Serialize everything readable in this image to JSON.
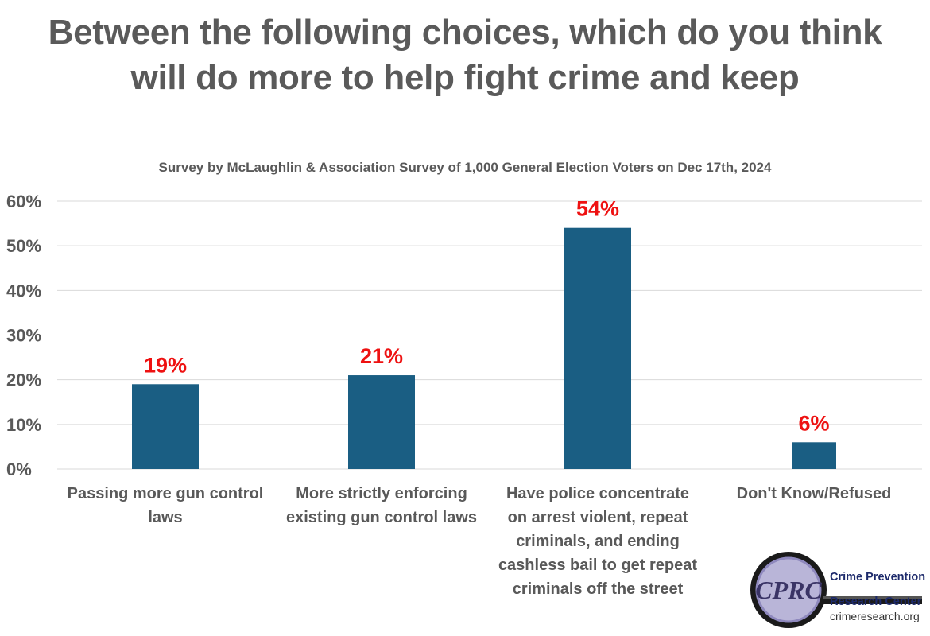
{
  "chart_data": {
    "type": "bar",
    "title": "Between the following choices, which do you think will do more to help fight crime and keep",
    "subtitle": "Survey by McLaughlin & Association Survey of 1,000 General Election Voters on Dec 17th, 2024",
    "categories": [
      "Passing more gun control laws",
      "More strictly enforcing existing gun control laws",
      "Have police concentrate on arrest violent, repeat criminals, and ending cashless bail to get repeat criminals off the street",
      "Don't Know/Refused"
    ],
    "values": [
      19,
      21,
      54,
      6
    ],
    "data_labels": [
      "19%",
      "21%",
      "54%",
      "6%"
    ],
    "y_ticks": [
      "0%",
      "10%",
      "20%",
      "30%",
      "40%",
      "50%",
      "60%"
    ],
    "ylim": [
      0,
      60
    ],
    "xlabel": "",
    "ylabel": "",
    "grid": true,
    "legend": "none",
    "colors": {
      "bar": "#1a5e83",
      "label": "#ee1111",
      "grid": "#d9d9d9",
      "text": "#595959"
    }
  },
  "logo": {
    "monogram": "CPRC",
    "line1": "Crime Prevention",
    "line2": "Research Center",
    "line3": "crimeresearch.org"
  }
}
